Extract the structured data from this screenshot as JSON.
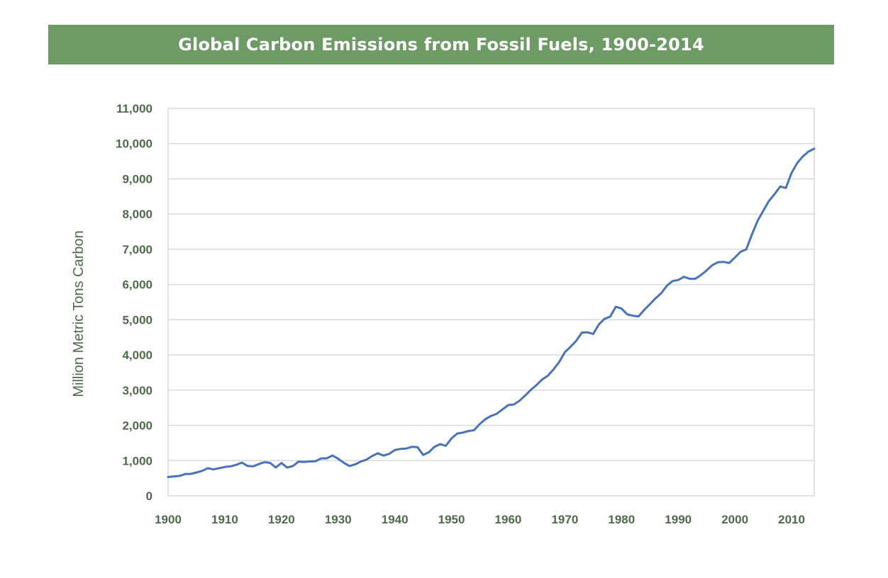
{
  "chart_data": {
    "type": "line",
    "title": "Global Carbon Emissions from Fossil Fuels, 1900-2014",
    "xlabel": "",
    "ylabel": "Million Metric Tons Carbon",
    "xlim": [
      1900,
      2014
    ],
    "ylim": [
      0,
      11000
    ],
    "x_ticks": [
      1900,
      1910,
      1920,
      1930,
      1940,
      1950,
      1960,
      1970,
      1980,
      1990,
      2000,
      2010
    ],
    "x_tick_labels": [
      "1900",
      "1910",
      "1920",
      "1930",
      "1940",
      "1950",
      "1960",
      "1970",
      "1980",
      "1990",
      "2000",
      "2010"
    ],
    "y_ticks": [
      0,
      1000,
      2000,
      3000,
      4000,
      5000,
      6000,
      7000,
      8000,
      9000,
      10000,
      11000
    ],
    "y_tick_labels": [
      "0",
      "1,000",
      "2,000",
      "3,000",
      "4,000",
      "5,000",
      "6,000",
      "7,000",
      "8,000",
      "9,000",
      "10,000",
      "11,000"
    ],
    "grid": true,
    "legend": "none",
    "series": [
      {
        "name": "Global Carbon Emissions",
        "color": "#4a72b8",
        "x": [
          1900,
          1901,
          1902,
          1903,
          1904,
          1905,
          1906,
          1907,
          1908,
          1909,
          1910,
          1911,
          1912,
          1913,
          1914,
          1915,
          1916,
          1917,
          1918,
          1919,
          1920,
          1921,
          1922,
          1923,
          1924,
          1925,
          1926,
          1927,
          1928,
          1929,
          1930,
          1931,
          1932,
          1933,
          1934,
          1935,
          1936,
          1937,
          1938,
          1939,
          1940,
          1941,
          1942,
          1943,
          1944,
          1945,
          1946,
          1947,
          1948,
          1949,
          1950,
          1951,
          1952,
          1953,
          1954,
          1955,
          1956,
          1957,
          1958,
          1959,
          1960,
          1961,
          1962,
          1963,
          1964,
          1965,
          1966,
          1967,
          1968,
          1969,
          1970,
          1971,
          1972,
          1973,
          1974,
          1975,
          1976,
          1977,
          1978,
          1979,
          1980,
          1981,
          1982,
          1983,
          1984,
          1985,
          1986,
          1987,
          1988,
          1989,
          1990,
          1991,
          1992,
          1993,
          1994,
          1995,
          1996,
          1997,
          1998,
          1999,
          2000,
          2001,
          2002,
          2003,
          2004,
          2005,
          2006,
          2007,
          2008,
          2009,
          2010,
          2011,
          2012,
          2013,
          2014
        ],
        "values": [
          534,
          552,
          566,
          617,
          624,
          663,
          707,
          784,
          750,
          785,
          819,
          836,
          879,
          943,
          850,
          836,
          901,
          955,
          936,
          806,
          932,
          803,
          845,
          970,
          963,
          975,
          983,
          1062,
          1065,
          1145,
          1053,
          940,
          847,
          893,
          973,
          1027,
          1130,
          1209,
          1142,
          1192,
          1299,
          1334,
          1342,
          1391,
          1383,
          1160,
          1238,
          1392,
          1469,
          1419,
          1630,
          1767,
          1795,
          1841,
          1865,
          2042,
          2177,
          2270,
          2330,
          2454,
          2577,
          2594,
          2700,
          2848,
          3008,
          3145,
          3305,
          3411,
          3588,
          3800,
          4076,
          4231,
          4399,
          4635,
          4644,
          4596,
          4864,
          5026,
          5087,
          5369,
          5315,
          5152,
          5113,
          5093,
          5278,
          5439,
          5607,
          5752,
          5965,
          6097,
          6127,
          6217,
          6164,
          6162,
          6266,
          6398,
          6548,
          6633,
          6643,
          6610,
          6765,
          6927,
          6996,
          7416,
          7807,
          8093,
          8370,
          8566,
          8783,
          8740,
          9167,
          9449,
          9638,
          9776,
          9855
        ]
      }
    ]
  }
}
